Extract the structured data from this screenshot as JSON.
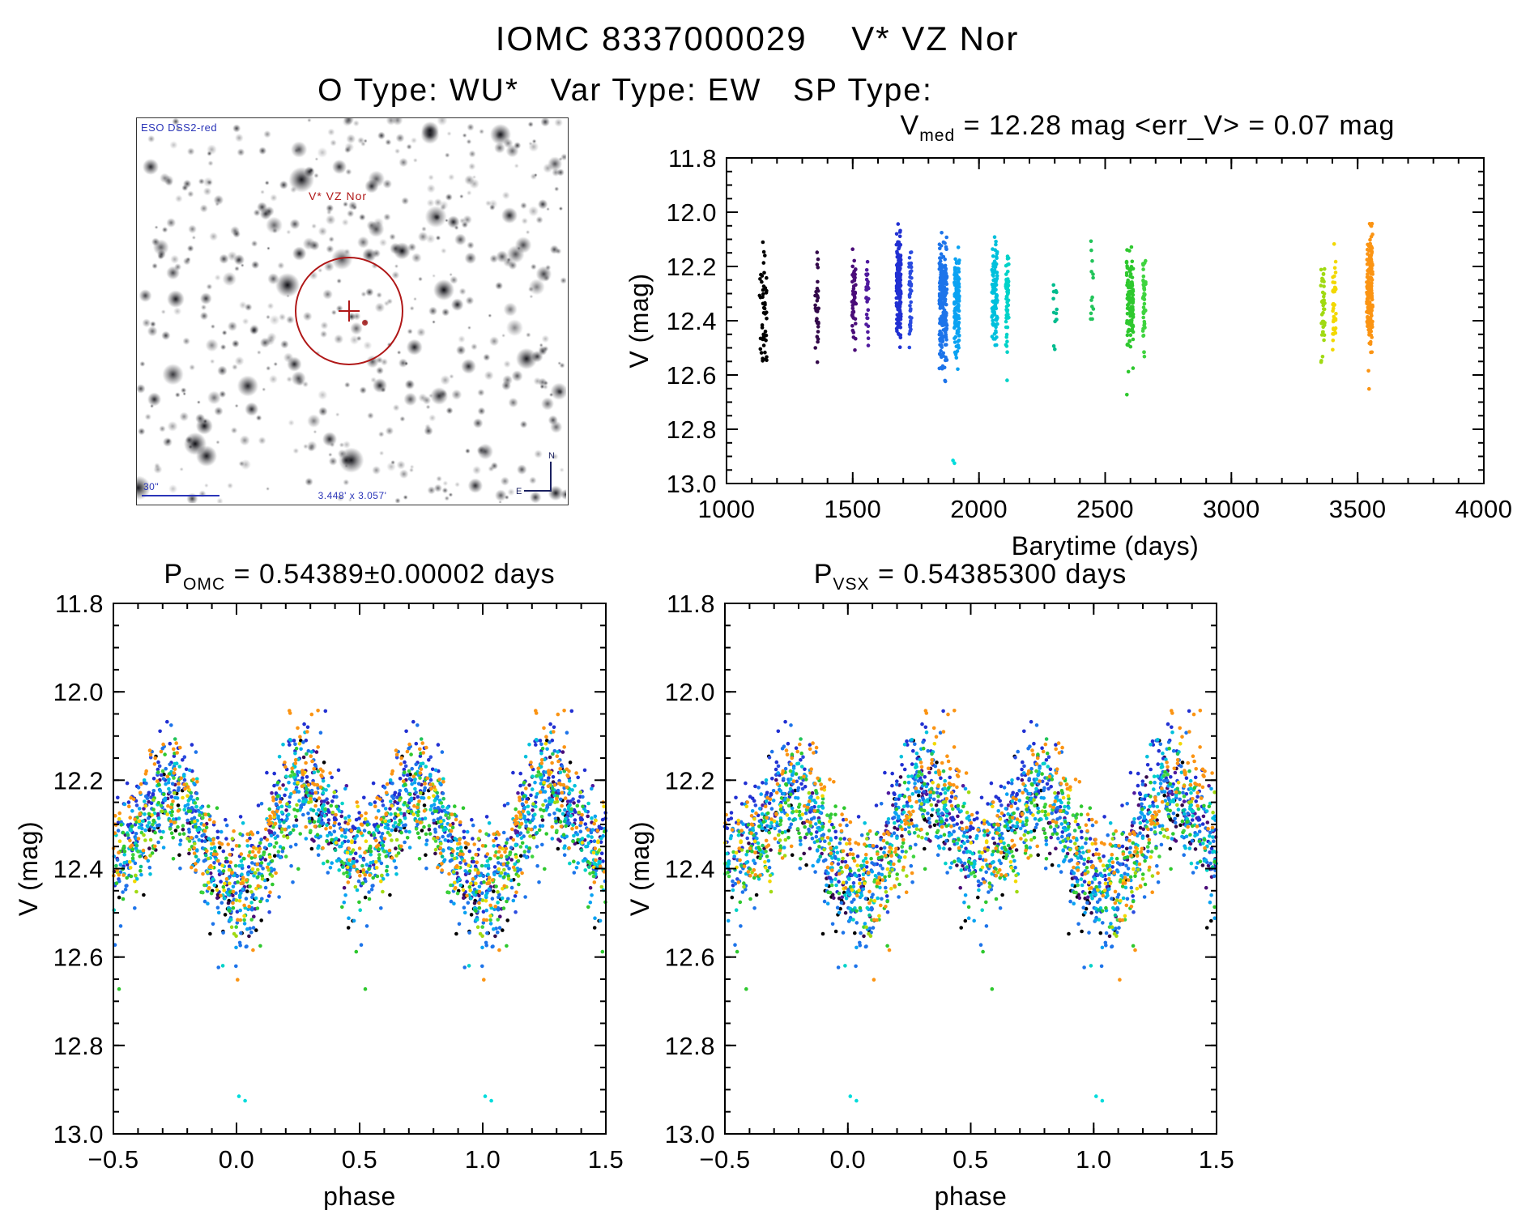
{
  "page": {
    "title": "IOMC 8337000029    V* VZ Nor",
    "subtitle": "O Type: WU*   Var Type: EW   SP Type:"
  },
  "finder_chart": {
    "survey_label": "ESO DSS2-red",
    "target_label": "V* VZ Nor",
    "size_label": "3.448' x 3.057'",
    "scale_label": "30\"",
    "compass_north": "N",
    "compass_east": "E",
    "annotation_color": "#2a35b8",
    "marker_color": "#b01818"
  },
  "light_curve_model": {
    "v_base": 12.32,
    "amp_cos4pi": 0.1,
    "amp_cos2pi": 0.04,
    "v_bright_clip": 11.9,
    "v_faint_clip": 12.72
  },
  "chart_data": [
    {
      "id": "barytime",
      "type": "scatter",
      "title_segments": [
        {
          "t": "V"
        },
        {
          "t": "med",
          "sub": true
        },
        {
          "t": " = 12.28 mag <err_V> = 0.07 mag"
        }
      ],
      "xlabel": "Barytime (days)",
      "ylabel": "V (mag)",
      "xlim": [
        1000,
        4000
      ],
      "ylim_mag": [
        11.8,
        13.0
      ],
      "y_inverted": true,
      "grid": false,
      "xticks": [
        {
          "v": 1000,
          "label": "1000"
        },
        {
          "v": 1500,
          "label": "1500"
        },
        {
          "v": 2000,
          "label": "2000"
        },
        {
          "v": 2500,
          "label": "2500"
        },
        {
          "v": 3000,
          "label": "3000"
        },
        {
          "v": 3500,
          "label": "3500"
        },
        {
          "v": 4000,
          "label": "4000"
        }
      ],
      "yticks": [
        {
          "v": 11.8,
          "label": "11.8"
        },
        {
          "v": 12.0,
          "label": "12.0"
        },
        {
          "v": 12.2,
          "label": "12.2"
        },
        {
          "v": 12.4,
          "label": "12.4"
        },
        {
          "v": 12.6,
          "label": "12.6"
        },
        {
          "v": 12.8,
          "label": "12.8"
        },
        {
          "v": 13.0,
          "label": "13.0"
        }
      ],
      "x_minor_step": 100,
      "y_minor_step": 0.05,
      "clusters": [
        {
          "t": 1145,
          "w": 28,
          "n": 48,
          "color": "#000000",
          "dv": 0.02,
          "s": 0.105
        },
        {
          "t": 1358,
          "w": 14,
          "n": 34,
          "color": "#33094a",
          "dv": 0.02,
          "s": 0.062
        },
        {
          "t": 1505,
          "w": 16,
          "n": 52,
          "color": "#4a0c78",
          "dv": 0.0,
          "s": 0.075
        },
        {
          "t": 1558,
          "w": 10,
          "n": 30,
          "color": "#4f1a9e",
          "dv": 0.0,
          "s": 0.07
        },
        {
          "t": 1682,
          "w": 18,
          "n": 150,
          "color": "#2130d2",
          "dv": -0.055,
          "s": 0.075
        },
        {
          "t": 1728,
          "w": 10,
          "n": 45,
          "color": "#2a4ce0",
          "dv": -0.02,
          "s": 0.07
        },
        {
          "t": 1858,
          "w": 30,
          "n": 230,
          "color": "#1d74ea",
          "dv": 0.01,
          "s": 0.09
        },
        {
          "t": 1912,
          "w": 20,
          "n": 130,
          "color": "#0aa2f2",
          "dv": 0.02,
          "s": 0.085
        },
        {
          "t": 2062,
          "w": 22,
          "n": 105,
          "color": "#00c0dc",
          "dv": -0.01,
          "s": 0.075
        },
        {
          "t": 2112,
          "w": 12,
          "n": 55,
          "color": "#00d2c8",
          "dv": 0.0,
          "s": 0.07
        },
        {
          "t": 2302,
          "w": 14,
          "n": 13,
          "color": "#00bc8e",
          "dv": 0.05,
          "s": 0.035
        },
        {
          "t": 2448,
          "w": 12,
          "n": 13,
          "color": "#22c45a",
          "dv": -0.03,
          "s": 0.04
        },
        {
          "t": 2598,
          "w": 26,
          "n": 120,
          "color": "#2ec82e",
          "dv": 0.02,
          "s": 0.1
        },
        {
          "t": 2655,
          "w": 12,
          "n": 45,
          "color": "#3fd43f",
          "dv": 0.03,
          "s": 0.085
        },
        {
          "t": 3362,
          "w": 16,
          "n": 42,
          "color": "#a0da12",
          "dv": 0.035,
          "s": 0.07
        },
        {
          "t": 3408,
          "w": 14,
          "n": 42,
          "color": "#f2d800",
          "dv": 0.0,
          "s": 0.06
        },
        {
          "t": 3548,
          "w": 24,
          "n": 185,
          "color": "#fb9413",
          "dv": -0.035,
          "s": 0.085
        }
      ],
      "outliers": [
        {
          "t": 1897,
          "phase": 0.01,
          "v": 12.915,
          "color": "#00dcdc"
        },
        {
          "t": 1903,
          "phase": 0.035,
          "v": 12.925,
          "color": "#00dcdc"
        }
      ]
    },
    {
      "id": "phase_omc",
      "type": "scatter",
      "title_segments": [
        {
          "t": "P"
        },
        {
          "t": "OMC",
          "sub": true
        },
        {
          "t": " = 0.54389±0.00002 days"
        }
      ],
      "period_days": 0.54389,
      "xlabel": "phase",
      "ylabel": "V (mag)",
      "xlim": [
        -0.5,
        1.5
      ],
      "ylim_mag": [
        11.8,
        13.0
      ],
      "y_inverted": true,
      "grid": false,
      "xticks": [
        {
          "v": -0.5,
          "label": "−0.5"
        },
        {
          "v": 0.0,
          "label": "0.0"
        },
        {
          "v": 0.5,
          "label": "0.5"
        },
        {
          "v": 1.0,
          "label": "1.0"
        },
        {
          "v": 1.5,
          "label": "1.5"
        }
      ],
      "yticks": [
        {
          "v": 11.8,
          "label": "11.8"
        },
        {
          "v": 12.0,
          "label": "12.0"
        },
        {
          "v": 12.2,
          "label": "12.2"
        },
        {
          "v": 12.4,
          "label": "12.4"
        },
        {
          "v": 12.6,
          "label": "12.6"
        },
        {
          "v": 12.8,
          "label": "12.8"
        },
        {
          "v": 13.0,
          "label": "13.0"
        }
      ],
      "x_minor_step": 0.1,
      "y_minor_step": 0.05,
      "phase_smear_per_day": 0
    },
    {
      "id": "phase_vsx",
      "type": "scatter",
      "title_segments": [
        {
          "t": "P"
        },
        {
          "t": "VSX",
          "sub": true
        },
        {
          "t": " = 0.54385300 days"
        }
      ],
      "period_days": 0.543853,
      "xlabel": "phase",
      "ylabel": "V (mag)",
      "xlim": [
        -0.5,
        1.5
      ],
      "ylim_mag": [
        11.8,
        13.0
      ],
      "y_inverted": true,
      "grid": false,
      "xticks": [
        {
          "v": -0.5,
          "label": "−0.5"
        },
        {
          "v": 0.0,
          "label": "0.0"
        },
        {
          "v": 0.5,
          "label": "0.5"
        },
        {
          "v": 1.0,
          "label": "1.0"
        },
        {
          "v": 1.5,
          "label": "1.5"
        }
      ],
      "yticks": [
        {
          "v": 11.8,
          "label": "11.8"
        },
        {
          "v": 12.0,
          "label": "12.0"
        },
        {
          "v": 12.2,
          "label": "12.2"
        },
        {
          "v": 12.4,
          "label": "12.4"
        },
        {
          "v": 12.6,
          "label": "12.6"
        },
        {
          "v": 12.8,
          "label": "12.8"
        },
        {
          "v": 13.0,
          "label": "13.0"
        }
      ],
      "x_minor_step": 0.1,
      "y_minor_step": 0.05,
      "phase_smear_per_day": 4e-05
    }
  ]
}
